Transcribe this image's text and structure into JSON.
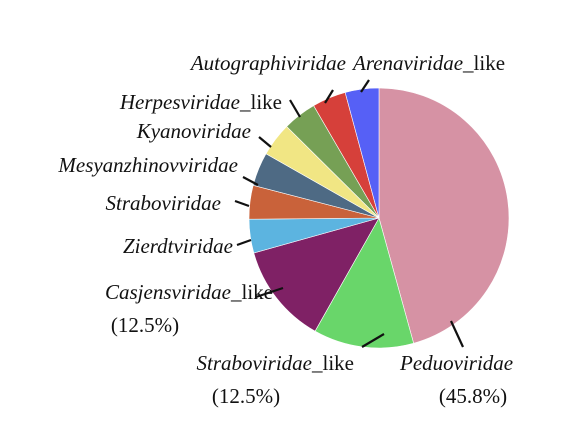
{
  "chart_data": {
    "type": "pie",
    "title": "",
    "slices": [
      {
        "name": "Peduoviridae",
        "suffix": "",
        "value": 45.8,
        "pct_label": "(45.8%)",
        "color": "#D692A4"
      },
      {
        "name": "Straboviridae",
        "suffix": "_like",
        "value": 12.5,
        "pct_label": "(12.5%)",
        "color": "#69D66A"
      },
      {
        "name": "Casjensviridae",
        "suffix": "_like",
        "value": 12.5,
        "pct_label": "(12.5%)",
        "color": "#7F2165"
      },
      {
        "name": "Zierdtviridae",
        "suffix": "",
        "value": 4.2,
        "pct_label": "",
        "color": "#5CB4E0"
      },
      {
        "name": "Straboviridae",
        "suffix": "",
        "value": 4.2,
        "pct_label": "",
        "color": "#C9623A"
      },
      {
        "name": "Mesyanzhinovviridae",
        "suffix": "",
        "value": 4.2,
        "pct_label": "",
        "color": "#4E6A84"
      },
      {
        "name": "Kyanoviridae",
        "suffix": "",
        "value": 4.2,
        "pct_label": "",
        "color": "#F1E684"
      },
      {
        "name": "Herpesviridae",
        "suffix": "_like",
        "value": 4.2,
        "pct_label": "",
        "color": "#76A055"
      },
      {
        "name": "Arenaviridae",
        "suffix": "_like",
        "value": 4.2,
        "pct_label": "",
        "color": "#D6403A"
      },
      {
        "name": "Autographiviridae",
        "suffix": "",
        "value": 4.2,
        "pct_label": "",
        "color": "#5660F6"
      }
    ],
    "legend": "none",
    "labels": "outside with leader lines"
  }
}
